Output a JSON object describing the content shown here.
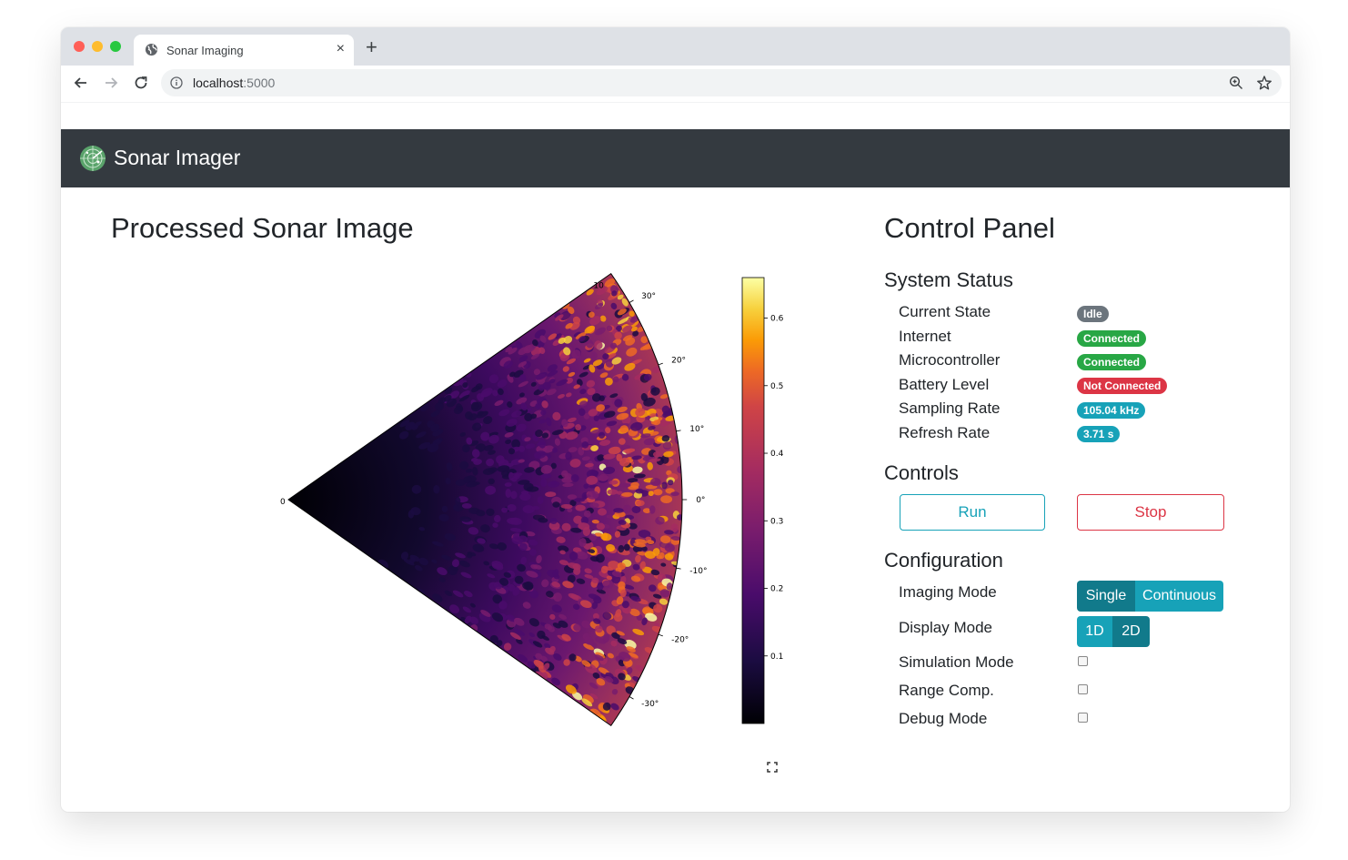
{
  "browser": {
    "tab_title": "Sonar Imaging",
    "tab_close": "×",
    "new_tab": "+",
    "url_host": "localhost",
    "url_port": ":5000"
  },
  "navbar": {
    "brand": "Sonar Imager"
  },
  "left": {
    "title": "Processed Sonar Image"
  },
  "chart_data": {
    "type": "heatmap",
    "projection": "polar-sector",
    "theta_range_deg": [
      -35,
      35
    ],
    "theta_ticks": [
      "30°",
      "20°",
      "10°",
      "0°",
      "-10°",
      "-20°",
      "-30°"
    ],
    "theta_tick_values": [
      30,
      20,
      10,
      0,
      -10,
      -20,
      -30
    ],
    "r_ticks": [
      "0",
      "10"
    ],
    "r_tick_values": [
      0,
      10
    ],
    "r_range": [
      0,
      10
    ],
    "colormap": "inferno",
    "colorbar_ticks": [
      "0.6",
      "0.5",
      "0.4",
      "0.3",
      "0.2",
      "0.1"
    ],
    "colorbar_tick_values": [
      0.6,
      0.5,
      0.4,
      0.3,
      0.2,
      0.1
    ],
    "color_range": [
      0,
      0.66
    ],
    "intensity_profile": "low near origin, increasing with range, strongest near max range",
    "grid": false
  },
  "right": {
    "title": "Control Panel",
    "status_title": "System Status",
    "status": [
      {
        "label": "Current State",
        "value": "Idle",
        "color": "#6c757d"
      },
      {
        "label": "Internet",
        "value": "Connected",
        "color": "#28a745"
      },
      {
        "label": "Microcontroller",
        "value": "Connected",
        "color": "#28a745"
      },
      {
        "label": "Battery Level",
        "value": "Not Connected",
        "color": "#dc3545"
      },
      {
        "label": "Sampling Rate",
        "value": "105.04 kHz",
        "color": "#17a2b8"
      },
      {
        "label": "Refresh Rate",
        "value": "3.71 s",
        "color": "#17a2b8"
      }
    ],
    "controls_title": "Controls",
    "run_label": "Run",
    "stop_label": "Stop",
    "config_title": "Configuration",
    "imaging_mode_label": "Imaging Mode",
    "imaging_modes": [
      "Single",
      "Continuous"
    ],
    "imaging_mode_selected": "Single",
    "display_mode_label": "Display Mode",
    "display_modes": [
      "1D",
      "2D"
    ],
    "display_mode_selected": "2D",
    "simulation_label": "Simulation Mode",
    "range_comp_label": "Range Comp.",
    "debug_label": "Debug Mode",
    "colors": {
      "info": "#17a2b8",
      "info_active": "#117a8b",
      "danger": "#dc3545",
      "navbar": "#343a40"
    }
  },
  "icons": [
    "globe-icon",
    "back-arrow-icon",
    "forward-arrow-icon",
    "reload-icon",
    "info-icon",
    "zoom-icon",
    "star-icon",
    "radar-logo-icon",
    "fullscreen-icon"
  ]
}
